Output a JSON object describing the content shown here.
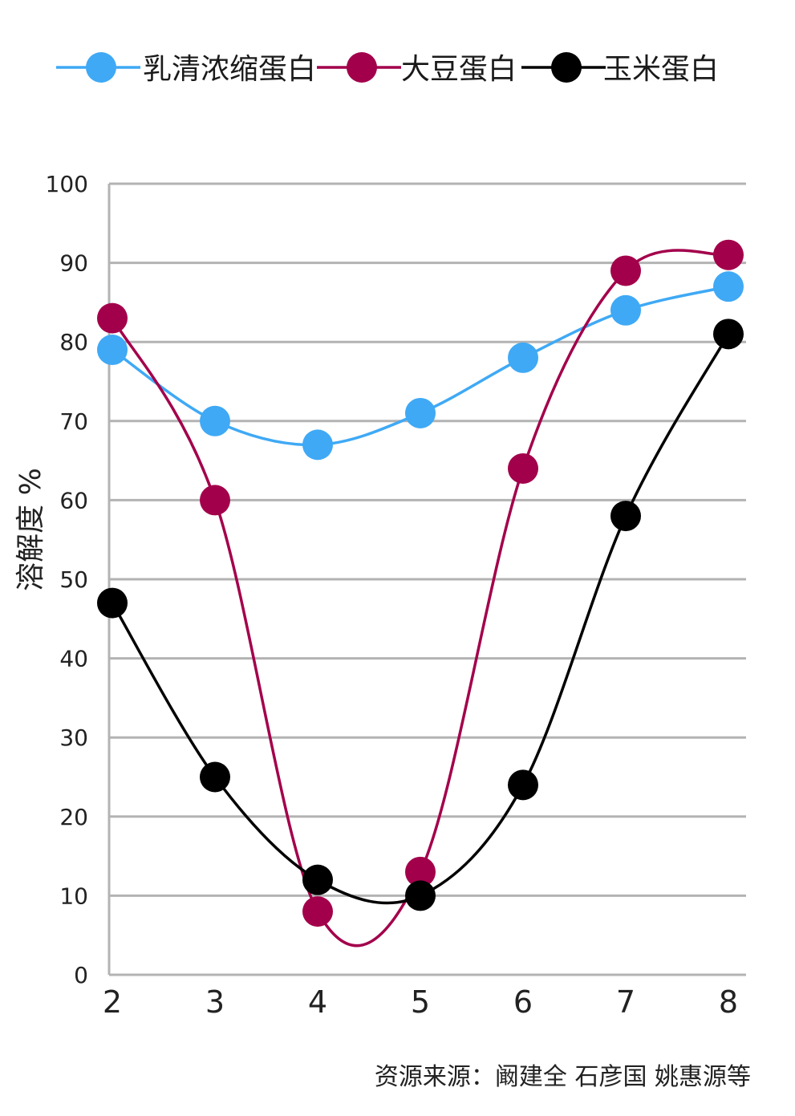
{
  "chart_data": {
    "type": "line",
    "title": "",
    "xlabel": "",
    "ylabel": "溶解度 %",
    "x": [
      2,
      3,
      4,
      5,
      6,
      7,
      8
    ],
    "xlim": [
      2,
      8
    ],
    "ylim": [
      0,
      100
    ],
    "x_ticks": [
      "2",
      "3",
      "4",
      "5",
      "6",
      "7",
      "8"
    ],
    "y_ticks": [
      "0",
      "10",
      "20",
      "30",
      "40",
      "50",
      "60",
      "70",
      "80",
      "90",
      "100"
    ],
    "grid": true,
    "legend_position": "top",
    "series": [
      {
        "name": "乳清浓缩蛋白",
        "color": "#3fa9f5",
        "x": [
          2,
          3,
          4,
          5,
          6,
          7,
          8
        ],
        "values": [
          79,
          70,
          67,
          71,
          78,
          84,
          87
        ]
      },
      {
        "name": "大豆蛋白",
        "color": "#a3004b",
        "x": [
          2,
          3,
          4,
          5,
          6,
          7,
          8
        ],
        "values": [
          83,
          60,
          8,
          13,
          64,
          89,
          91
        ]
      },
      {
        "name": "玉米蛋白",
        "color": "#000000",
        "x": [
          2,
          3,
          4,
          5,
          6,
          7,
          8
        ],
        "values": [
          47,
          25,
          12,
          10,
          24,
          58,
          81
        ]
      }
    ],
    "source": "资源来源：阚建全 石彦国 姚惠源等"
  }
}
